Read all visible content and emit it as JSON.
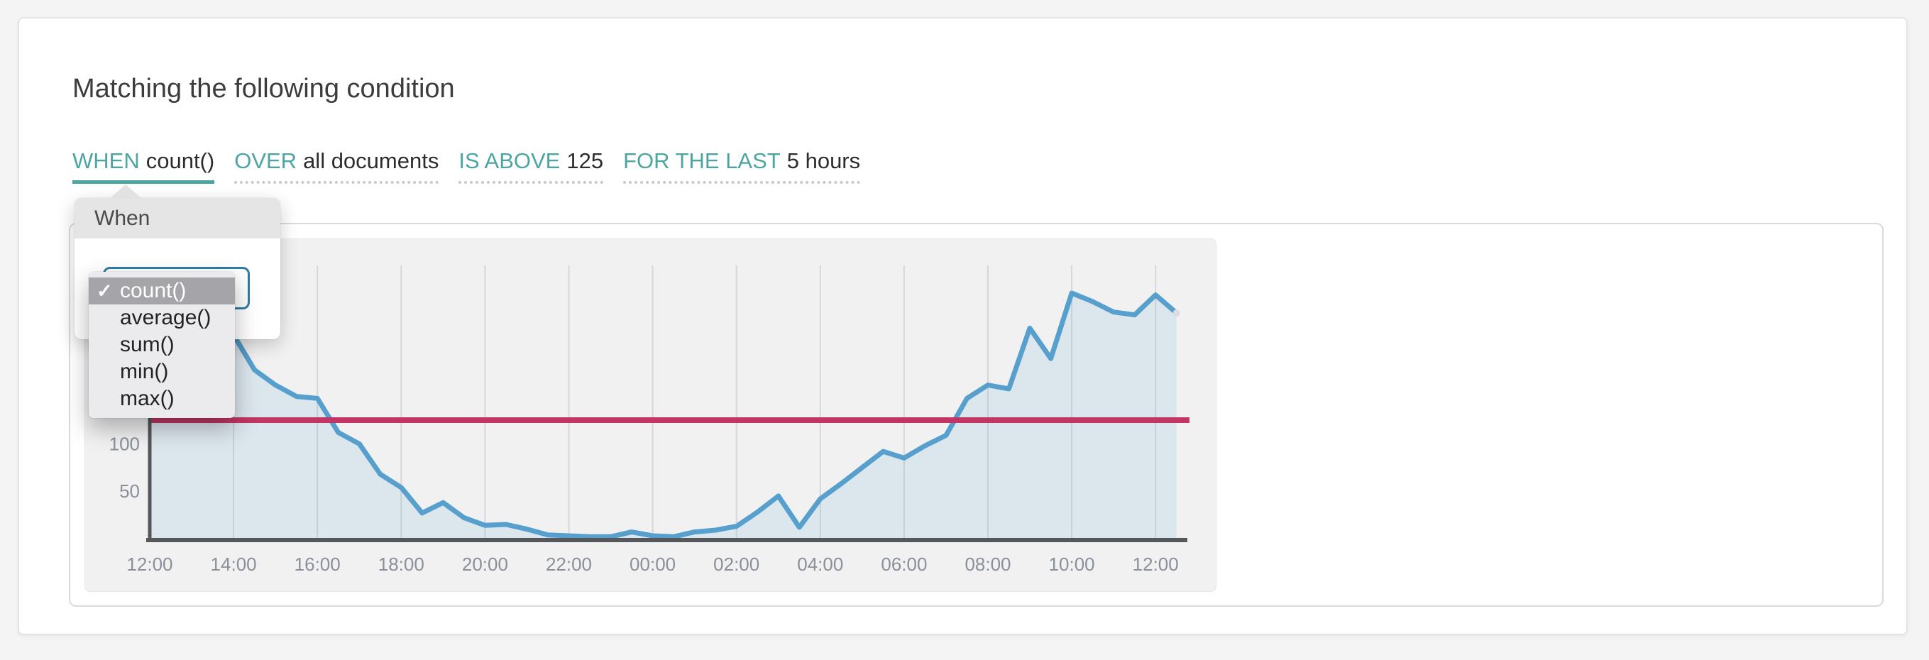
{
  "page": {
    "title": "Matching the following condition"
  },
  "expression": {
    "segments": [
      {
        "key": "WHEN",
        "value": "count()",
        "active": true
      },
      {
        "key": "OVER",
        "value": "all documents",
        "active": false
      },
      {
        "key": "IS ABOVE",
        "value": "125",
        "active": false
      },
      {
        "key": "FOR THE LAST",
        "value": "5 hours",
        "active": false
      }
    ]
  },
  "popover": {
    "title": "When",
    "checkmark": "✓",
    "selected": "count()",
    "options": [
      "count()",
      "average()",
      "sum()",
      "min()",
      "max()"
    ]
  },
  "chart_data": {
    "type": "area",
    "title": "",
    "xlabel": "",
    "ylabel": "",
    "x_unit": "hours offset from 12:00",
    "xlim": [
      0,
      25
    ],
    "ylim": [
      0,
      288
    ],
    "grid": true,
    "legend": false,
    "x_tick_labels": [
      "12:00",
      "14:00",
      "16:00",
      "18:00",
      "20:00",
      "22:00",
      "00:00",
      "02:00",
      "04:00",
      "06:00",
      "08:00",
      "10:00",
      "12:00"
    ],
    "x_tick_hours": [
      0,
      2,
      4,
      6,
      8,
      10,
      12,
      14,
      16,
      18,
      20,
      22,
      24
    ],
    "y_ticks": [
      50,
      100
    ],
    "x": [
      0,
      0.5,
      1,
      1.5,
      2,
      2.5,
      3,
      3.5,
      4,
      4.5,
      5,
      5.5,
      6,
      6.5,
      7,
      7.5,
      8,
      8.5,
      9,
      9.5,
      10,
      10.5,
      11,
      11.5,
      12,
      12.5,
      13,
      13.5,
      14,
      14.5,
      15,
      15.5,
      16,
      16.5,
      17,
      17.5,
      18,
      18.5,
      19,
      19.5,
      20,
      20.5,
      21,
      21.5,
      22,
      22.5,
      23,
      23.5,
      24,
      24.5
    ],
    "series": [
      {
        "name": "count()",
        "values": [
          228,
          236,
          232,
          224,
          215,
          178,
          162,
          150,
          148,
          112,
          100,
          68,
          54,
          27,
          38,
          22,
          14,
          15,
          10,
          4,
          3,
          2,
          2,
          7,
          3,
          2,
          7,
          9,
          13,
          28,
          45,
          12,
          42,
          58,
          75,
          92,
          85,
          98,
          109,
          148,
          162,
          158,
          222,
          190,
          259,
          250,
          239,
          236,
          257,
          238
        ]
      }
    ],
    "threshold": {
      "value": 125,
      "label": "125"
    },
    "colors": {
      "series_line": "#57a0ce",
      "series_fill": "rgba(87,160,206,0.13)",
      "threshold_line": "#c23565",
      "axis": "#55575b",
      "gridline": "#d5d7da",
      "tick_label": "#8a9099"
    }
  }
}
